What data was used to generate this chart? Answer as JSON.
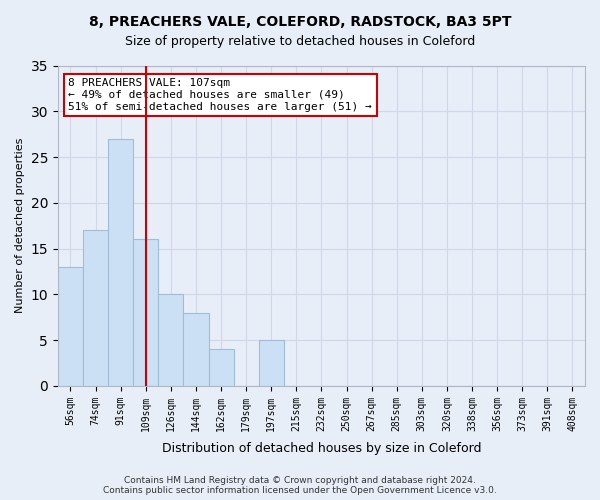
{
  "title1": "8, PREACHERS VALE, COLEFORD, RADSTOCK, BA3 5PT",
  "title2": "Size of property relative to detached houses in Coleford",
  "xlabel": "Distribution of detached houses by size in Coleford",
  "ylabel": "Number of detached properties",
  "bins": [
    "56sqm",
    "74sqm",
    "91sqm",
    "109sqm",
    "126sqm",
    "144sqm",
    "162sqm",
    "179sqm",
    "197sqm",
    "215sqm",
    "232sqm",
    "250sqm",
    "267sqm",
    "285sqm",
    "303sqm",
    "320sqm",
    "338sqm",
    "356sqm",
    "373sqm",
    "391sqm",
    "408sqm"
  ],
  "values": [
    13,
    17,
    27,
    16,
    10,
    8,
    4,
    0,
    5,
    0,
    0,
    0,
    0,
    0,
    0,
    0,
    0,
    0,
    0,
    0,
    0
  ],
  "bar_color": "#cce0f5",
  "bar_edge_color": "#a0bdd8",
  "vline_x": 3,
  "vline_color": "#cc0000",
  "annotation_text": "8 PREACHERS VALE: 107sqm\n← 49% of detached houses are smaller (49)\n51% of semi-detached houses are larger (51) →",
  "annotation_box_color": "#ffffff",
  "annotation_box_edge": "#cc0000",
  "ylim": [
    0,
    35
  ],
  "yticks": [
    0,
    5,
    10,
    15,
    20,
    25,
    30,
    35
  ],
  "grid_color": "#d0d8e8",
  "bg_color": "#e8eef8",
  "footer": "Contains HM Land Registry data © Crown copyright and database right 2024.\nContains public sector information licensed under the Open Government Licence v3.0."
}
